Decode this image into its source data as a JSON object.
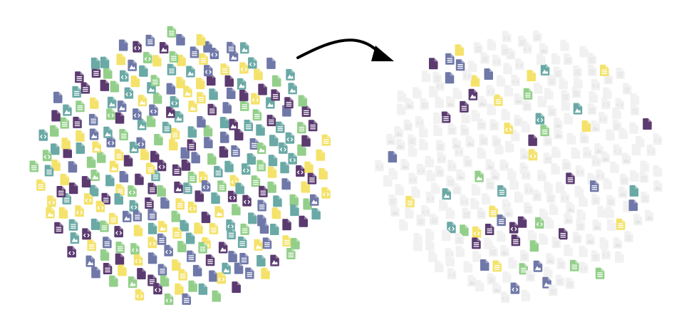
{
  "diagram": {
    "description_shown": "",
    "colors": {
      "purple": "#5b3a70",
      "indigo": "#6f78a8",
      "teal": "#6aa9a5",
      "green": "#93cf8a",
      "yellow": "#f4e26a",
      "faded": "#f1f1f1",
      "arrow": "#000000"
    },
    "icon_types": [
      "doc-icon",
      "code-file-icon",
      "image-file-icon",
      "blank-file-icon"
    ],
    "groups": [
      {
        "name": "full-file-collection",
        "file_count": 310,
        "highlighted_fraction": 1.0,
        "seed": 11
      },
      {
        "name": "sampled-file-collection",
        "file_count": 310,
        "highlighted_fraction": 0.17,
        "seed": 29
      }
    ],
    "connector": {
      "name": "transformation-arrow",
      "direction": "left-to-right"
    }
  }
}
